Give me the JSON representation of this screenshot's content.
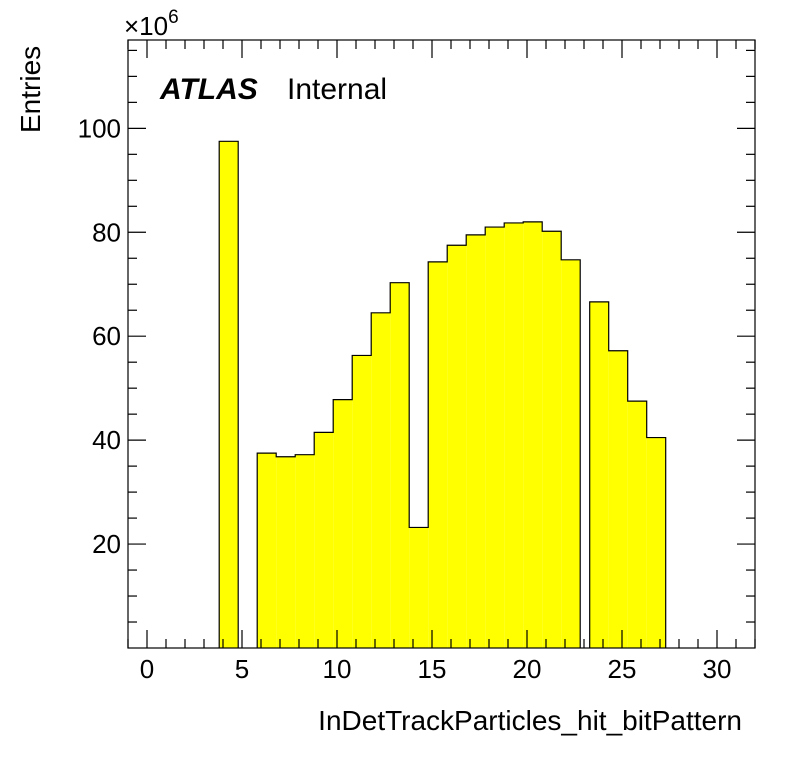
{
  "chart_data": {
    "type": "bar",
    "xlabel": "InDetTrackParticles_hit_bitPattern",
    "ylabel": "Entries",
    "y_multiplier": "×10",
    "y_multiplier_exponent": "6",
    "label_main": "ATLAS",
    "label_sub": "Internal",
    "xlim": [
      -1,
      32
    ],
    "ylim": [
      0,
      117
    ],
    "x_ticks": [
      0,
      5,
      10,
      15,
      20,
      25,
      30
    ],
    "x_tick_labels": [
      "0",
      "5",
      "10",
      "15",
      "20",
      "25",
      "30"
    ],
    "y_ticks": [
      20,
      40,
      60,
      80,
      100
    ],
    "y_tick_labels": [
      "20",
      "40",
      "60",
      "80",
      "100"
    ],
    "bin_width": 1,
    "bins": [
      {
        "x_low": 3.8,
        "value": 97.5
      },
      {
        "x_low": 5.8,
        "value": 37.5
      },
      {
        "x_low": 6.8,
        "value": 36.8
      },
      {
        "x_low": 7.8,
        "value": 37.2
      },
      {
        "x_low": 8.8,
        "value": 41.5
      },
      {
        "x_low": 9.8,
        "value": 47.8
      },
      {
        "x_low": 10.8,
        "value": 56.3
      },
      {
        "x_low": 11.8,
        "value": 64.5
      },
      {
        "x_low": 12.8,
        "value": 70.3
      },
      {
        "x_low": 13.8,
        "value": 23.2
      },
      {
        "x_low": 14.8,
        "value": 74.3
      },
      {
        "x_low": 15.8,
        "value": 77.5
      },
      {
        "x_low": 16.8,
        "value": 79.5
      },
      {
        "x_low": 17.8,
        "value": 81.0
      },
      {
        "x_low": 18.8,
        "value": 81.8
      },
      {
        "x_low": 19.8,
        "value": 82.0
      },
      {
        "x_low": 20.8,
        "value": 80.2
      },
      {
        "x_low": 21.8,
        "value": 74.7
      },
      {
        "x_low": 23.3,
        "value": 66.6
      },
      {
        "x_low": 24.3,
        "value": 57.2
      },
      {
        "x_low": 25.3,
        "value": 47.5
      },
      {
        "x_low": 26.3,
        "value": 40.5
      }
    ],
    "fill_color": "#ffff00",
    "line_color": "#000000",
    "grid": false
  }
}
